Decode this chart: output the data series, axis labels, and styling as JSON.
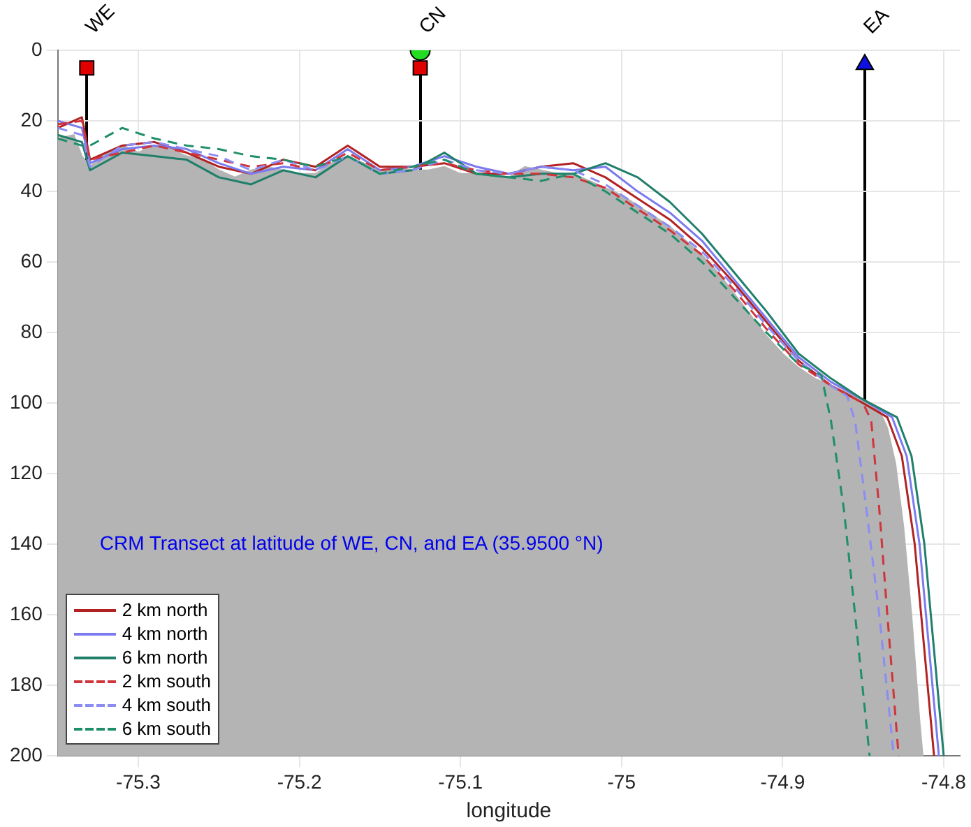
{
  "chart_data": {
    "type": "line",
    "xlabel": "longitude",
    "xlim": [
      -75.35,
      -74.79
    ],
    "xticks": [
      -75.3,
      -75.2,
      -75.1,
      -75,
      -74.9,
      -74.8
    ],
    "ylim": [
      200,
      0
    ],
    "yticks": [
      0,
      20,
      40,
      60,
      80,
      100,
      120,
      140,
      160,
      180,
      200
    ],
    "grid": true,
    "legend": "bottom left",
    "annotations": [
      "WE",
      "CN",
      "EA",
      "CRM Transect at latitude of WE, CN, and EA (35.9500 °N)"
    ],
    "series": [
      {
        "type": "area",
        "color": "#b4b4b4",
        "x": [
          -75.35,
          -75.35,
          -75.34,
          -75.335,
          -75.33,
          -75.32,
          -75.31,
          -75.3,
          -75.29,
          -75.28,
          -75.27,
          -75.26,
          -75.25,
          -75.24,
          -75.23,
          -75.22,
          -75.21,
          -75.2,
          -75.19,
          -75.18,
          -75.17,
          -75.16,
          -75.15,
          -75.14,
          -75.13,
          -75.12,
          -75.11,
          -75.1,
          -75.09,
          -75.08,
          -75.07,
          -75.06,
          -75.05,
          -75.04,
          -75.03,
          -75.02,
          -75.01,
          -75,
          -74.99,
          -74.98,
          -74.97,
          -74.96,
          -74.95,
          -74.94,
          -74.93,
          -74.92,
          -74.91,
          -74.9,
          -74.89,
          -74.88,
          -74.87,
          -74.86,
          -74.85,
          -74.84,
          -74.835,
          -74.83,
          -74.825,
          -74.82,
          -74.815,
          -74.813
        ],
        "values": [
          200,
          25,
          24,
          30,
          33,
          29,
          27,
          29,
          27,
          28,
          30,
          31,
          34,
          36,
          34,
          33,
          34,
          35,
          35,
          32,
          30,
          32,
          34,
          33,
          34,
          34,
          33,
          35,
          35,
          35,
          36,
          33,
          34,
          35,
          35,
          37,
          39,
          41,
          44,
          47,
          50,
          54,
          58,
          63,
          69,
          75,
          81,
          86,
          90,
          93,
          95,
          97,
          99,
          102,
          107,
          117,
          135,
          160,
          190,
          200
        ]
      },
      {
        "type": "line",
        "name": "2 km north",
        "color": "#b22222",
        "line_style": "solid",
        "x": [
          -75.35,
          -75.335,
          -75.33,
          -75.31,
          -75.29,
          -75.27,
          -75.25,
          -75.23,
          -75.21,
          -75.19,
          -75.17,
          -75.15,
          -75.13,
          -75.11,
          -75.09,
          -75.07,
          -75.05,
          -75.03,
          -75.01,
          -74.99,
          -74.97,
          -74.95,
          -74.93,
          -74.91,
          -74.89,
          -74.87,
          -74.85,
          -74.835,
          -74.826,
          -74.818,
          -74.812,
          -74.806
        ],
        "values": [
          22,
          19,
          31,
          27,
          26,
          29,
          33,
          35,
          31,
          33,
          27,
          33,
          33,
          32,
          35,
          35,
          33,
          32,
          36,
          42,
          48,
          56,
          66,
          77,
          88,
          95,
          100,
          104,
          115,
          140,
          170,
          200
        ]
      },
      {
        "type": "line",
        "name": "4 km north",
        "color": "#7b7bef",
        "line_style": "solid",
        "x": [
          -75.35,
          -75.335,
          -75.33,
          -75.31,
          -75.29,
          -75.27,
          -75.25,
          -75.23,
          -75.21,
          -75.19,
          -75.17,
          -75.15,
          -75.13,
          -75.11,
          -75.09,
          -75.07,
          -75.05,
          -75.03,
          -75.01,
          -74.99,
          -74.97,
          -74.95,
          -74.93,
          -74.91,
          -74.89,
          -74.87,
          -74.85,
          -74.832,
          -74.823,
          -74.815,
          -74.809,
          -74.803
        ],
        "values": [
          20,
          22,
          32,
          28,
          27,
          28,
          32,
          35,
          33,
          34,
          28,
          34,
          33,
          30,
          33,
          35,
          33,
          34,
          33,
          40,
          46,
          54,
          65,
          76,
          87,
          94,
          99,
          104,
          115,
          140,
          170,
          200
        ]
      },
      {
        "type": "line",
        "name": "6 km north",
        "color": "#1f7f6a",
        "line_style": "solid",
        "x": [
          -75.35,
          -75.335,
          -75.33,
          -75.31,
          -75.29,
          -75.27,
          -75.25,
          -75.23,
          -75.21,
          -75.19,
          -75.17,
          -75.15,
          -75.13,
          -75.11,
          -75.09,
          -75.07,
          -75.05,
          -75.03,
          -75.01,
          -74.99,
          -74.97,
          -74.95,
          -74.93,
          -74.91,
          -74.89,
          -74.87,
          -74.85,
          -74.829,
          -74.82,
          -74.812,
          -74.806,
          -74.8
        ],
        "values": [
          24,
          26,
          34,
          29,
          30,
          31,
          36,
          38,
          34,
          36,
          30,
          35,
          34,
          29,
          35,
          36,
          35,
          35,
          32,
          36,
          43,
          52,
          63,
          74,
          86,
          93,
          99,
          104,
          115,
          140,
          170,
          200
        ]
      },
      {
        "type": "line",
        "name": "2 km south",
        "color": "#d0343c",
        "line_style": "dashed",
        "x": [
          -75.35,
          -75.335,
          -75.33,
          -75.31,
          -75.29,
          -75.27,
          -75.25,
          -75.23,
          -75.21,
          -75.19,
          -75.17,
          -75.15,
          -75.13,
          -75.11,
          -75.09,
          -75.07,
          -75.05,
          -75.03,
          -75.01,
          -74.99,
          -74.97,
          -74.95,
          -74.93,
          -74.91,
          -74.89,
          -74.87,
          -74.85,
          -74.845,
          -74.84,
          -74.835,
          -74.828
        ],
        "values": [
          21,
          20,
          31,
          29,
          27,
          29,
          31,
          33,
          32,
          34,
          29,
          34,
          33,
          32,
          34,
          35,
          35,
          36,
          39,
          45,
          51,
          58,
          68,
          79,
          89,
          95,
          100,
          105,
          130,
          160,
          200
        ]
      },
      {
        "type": "line",
        "name": "4 km south",
        "color": "#8c8cf5",
        "line_style": "dashed",
        "x": [
          -75.35,
          -75.335,
          -75.33,
          -75.31,
          -75.29,
          -75.27,
          -75.25,
          -75.23,
          -75.21,
          -75.19,
          -75.17,
          -75.15,
          -75.13,
          -75.11,
          -75.09,
          -75.07,
          -75.05,
          -75.03,
          -75.01,
          -74.99,
          -74.97,
          -74.95,
          -74.93,
          -74.91,
          -74.89,
          -74.87,
          -74.86,
          -74.855,
          -74.848,
          -74.84,
          -74.831
        ],
        "values": [
          22,
          24,
          33,
          27,
          26,
          28,
          30,
          34,
          31,
          34,
          30,
          35,
          34,
          31,
          34,
          35,
          33,
          34,
          38,
          44,
          50,
          57,
          67,
          78,
          88,
          95,
          98,
          105,
          130,
          160,
          200
        ]
      },
      {
        "type": "line",
        "name": "6 km south",
        "color": "#1f8f6a",
        "line_style": "dashed",
        "x": [
          -75.35,
          -75.335,
          -75.33,
          -75.31,
          -75.29,
          -75.27,
          -75.25,
          -75.23,
          -75.21,
          -75.19,
          -75.17,
          -75.15,
          -75.13,
          -75.11,
          -75.09,
          -75.07,
          -75.05,
          -75.03,
          -75.01,
          -74.99,
          -74.97,
          -74.95,
          -74.93,
          -74.91,
          -74.89,
          -74.876,
          -74.87,
          -74.862,
          -74.855,
          -74.846
        ],
        "values": [
          25,
          27,
          27,
          22,
          25,
          27,
          28,
          30,
          31,
          33,
          30,
          35,
          33,
          31,
          35,
          36,
          37,
          35,
          40,
          46,
          52,
          60,
          70,
          80,
          89,
          92,
          105,
          130,
          160,
          200
        ]
      },
      {
        "type": "scatter",
        "color": "#e00000",
        "marker": "square",
        "x": [
          -75.332,
          -75.125
        ],
        "values": [
          5,
          5
        ]
      },
      {
        "type": "scatter",
        "color": "#22dd22",
        "marker": "circle",
        "x": [
          -75.125
        ],
        "values": [
          0
        ]
      },
      {
        "type": "scatter",
        "color": "#1010e0",
        "marker": "triangle",
        "x": [
          -74.849
        ],
        "values": [
          4
        ]
      }
    ]
  }
}
